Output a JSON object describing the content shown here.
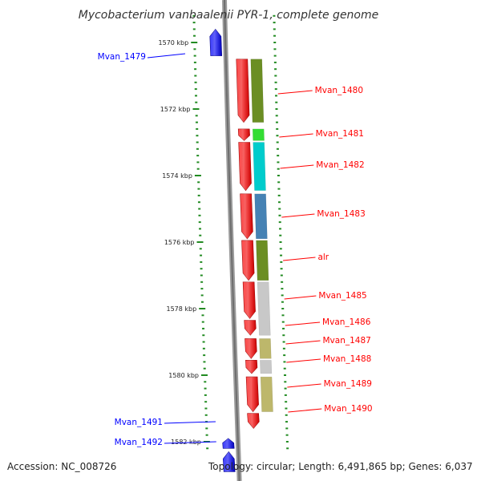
{
  "title": "Mycobacterium vanbaalenii PYR-1, complete genome",
  "footer": {
    "accession": "Accession: NC_008726",
    "summary": "Topology: circular; Length: 6,491,865 bp; Genes: 6,037"
  },
  "colors": {
    "forward_strand": "#0000ff",
    "reverse_strand": "#ff0000",
    "backbone": "#888888",
    "ticks": "#228b22"
  },
  "axis": {
    "unit": "kbp",
    "ticks": [
      {
        "value": 1570,
        "label": "1570 kbp"
      },
      {
        "value": 1572,
        "label": "1572 kbp"
      },
      {
        "value": 1574,
        "label": "1574 kbp"
      },
      {
        "value": 1576,
        "label": "1576 kbp"
      },
      {
        "value": 1578,
        "label": "1578 kbp"
      },
      {
        "value": 1580,
        "label": "1580 kbp"
      },
      {
        "value": 1582,
        "label": "1582 kbp"
      }
    ]
  },
  "genes": [
    {
      "name": "",
      "strand": "+",
      "start": 1568.6,
      "end": 1569.3
    },
    {
      "name": "Mvan_1479",
      "strand": "+",
      "start": 1569.6,
      "end": 1570.4
    },
    {
      "name": "Mvan_1480",
      "strand": "-",
      "start": 1570.5,
      "end": 1572.4
    },
    {
      "name": "Mvan_1481",
      "strand": "-",
      "start": 1572.6,
      "end": 1572.95
    },
    {
      "name": "Mvan_1482",
      "strand": "-",
      "start": 1573.0,
      "end": 1574.45
    },
    {
      "name": "Mvan_1483",
      "strand": "-",
      "start": 1574.55,
      "end": 1575.9
    },
    {
      "name": "alr",
      "strand": "-",
      "start": 1575.95,
      "end": 1577.15
    },
    {
      "name": "Mvan_1485",
      "strand": "-",
      "start": 1577.2,
      "end": 1578.3
    },
    {
      "name": "Mvan_1486",
      "strand": "-",
      "start": 1578.35,
      "end": 1578.8
    },
    {
      "name": "Mvan_1487",
      "strand": "-",
      "start": 1578.9,
      "end": 1579.5
    },
    {
      "name": "Mvan_1488",
      "strand": "-",
      "start": 1579.55,
      "end": 1579.95
    },
    {
      "name": "Mvan_1489",
      "strand": "-",
      "start": 1580.05,
      "end": 1581.1
    },
    {
      "name": "Mvan_1490",
      "strand": "-",
      "start": 1581.15,
      "end": 1581.6
    },
    {
      "name": "Mvan_1491",
      "strand": "+",
      "start": 1581.9,
      "end": 1582.2
    },
    {
      "name": "Mvan_1492",
      "strand": "+",
      "start": 1582.3,
      "end": 1582.9
    },
    {
      "name": "",
      "strand": "-",
      "start": 1583.3,
      "end": 1583.8
    }
  ],
  "features": [
    {
      "start": 1568.6,
      "end": 1569.3,
      "color": "#00e5e5"
    },
    {
      "start": 1570.5,
      "end": 1572.4,
      "color": "#6b8e23"
    },
    {
      "start": 1572.6,
      "end": 1572.95,
      "color": "#33dd33"
    },
    {
      "start": 1573.0,
      "end": 1574.45,
      "color": "#00cccc"
    },
    {
      "start": 1574.55,
      "end": 1575.9,
      "color": "#4682b4"
    },
    {
      "start": 1575.95,
      "end": 1577.15,
      "color": "#6b8e23"
    },
    {
      "start": 1577.2,
      "end": 1578.8,
      "color": "#c8c8c8"
    },
    {
      "start": 1578.9,
      "end": 1579.5,
      "color": "#bdb76b"
    },
    {
      "start": 1579.55,
      "end": 1579.95,
      "color": "#c8c8c8"
    },
    {
      "start": 1580.05,
      "end": 1581.1,
      "color": "#bdb76b"
    }
  ]
}
